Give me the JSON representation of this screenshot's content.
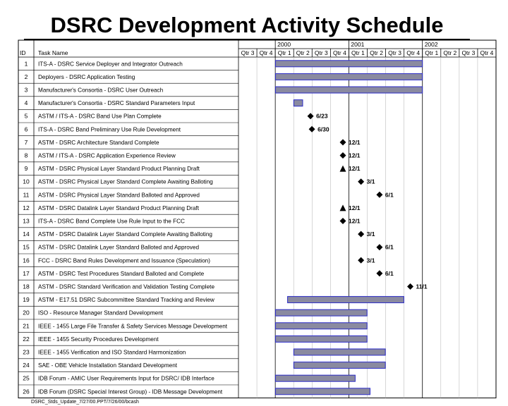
{
  "title": "DSRC Development Activity Schedule",
  "footer": "DSRC_Stds_Update_7/27/00.PPT/7/26/00/bcash",
  "colors": {
    "bar_fill": "#8a8aa0",
    "bar_stroke": "#2b2bc8",
    "grid": "#000000",
    "milestone": "#000000"
  },
  "chart_data": {
    "type": "gantt",
    "title": "DSRC Development Activity Schedule",
    "columns": {
      "id": "ID",
      "task": "Task Name"
    },
    "years": [
      {
        "label": "",
        "quarters": [
          "Qtr 3",
          "Qtr 4"
        ]
      },
      {
        "label": "2000",
        "quarters": [
          "Qtr 1",
          "Qtr 2",
          "Qtr 3",
          "Qtr 4"
        ]
      },
      {
        "label": "2001",
        "quarters": [
          "Qtr 1",
          "Qtr 2",
          "Qtr 3",
          "Qtr 4"
        ]
      },
      {
        "label": "2002",
        "quarters": [
          "Qtr 1",
          "Qtr 2",
          "Qtr 3",
          "Qtr 4"
        ]
      }
    ],
    "timeline_start": "1999-07-01",
    "timeline_end": "2002-12-31",
    "tasks": [
      {
        "id": "1",
        "name": "ITS-A - DSRC Service Deployer and Integrator Outreach",
        "kind": "bar",
        "start": "2000-01-01",
        "end": "2001-12-31"
      },
      {
        "id": "2",
        "name": "Deployers - DSRC Application Testing",
        "kind": "bar",
        "start": "2000-01-01",
        "end": "2001-12-31"
      },
      {
        "id": "3",
        "name": "Manufacturer's Consortia  -  DSRC User Outreach",
        "kind": "bar",
        "start": "2000-01-01",
        "end": "2001-12-31"
      },
      {
        "id": "4",
        "name": "Manufacturer's Consortia  -   DSRC Standard Parameters Input",
        "kind": "bar",
        "start": "2000-04-01",
        "end": "2000-05-15"
      },
      {
        "id": "5",
        "name": "ASTM / ITS-A - DSRC Band Use Plan Complete",
        "kind": "milestone",
        "date": "2000-06-23",
        "label": "6/23",
        "shape": "diamond"
      },
      {
        "id": "6",
        "name": "ITS-A - DSRC Band Preliminary Use Rule Development",
        "kind": "milestone",
        "date": "2000-06-30",
        "label": "6/30",
        "shape": "diamond"
      },
      {
        "id": "7",
        "name": "ASTM - DSRC Architecture Standard Complete",
        "kind": "milestone",
        "date": "2000-12-01",
        "label": "12/1",
        "shape": "diamond"
      },
      {
        "id": "8",
        "name": "ASTM / ITS-A - DSRC Application Experience Review",
        "kind": "milestone",
        "date": "2000-12-01",
        "label": "12/1",
        "shape": "diamond"
      },
      {
        "id": "9",
        "name": "ASTM - DSRC Physical Layer Standard Product Planning Draft",
        "kind": "milestone",
        "date": "2000-12-01",
        "label": "12/1",
        "shape": "triangle"
      },
      {
        "id": "10",
        "name": "ASTM - DSRC Physical Layer Standard Complete Awaiting Balloting",
        "kind": "milestone",
        "date": "2001-03-01",
        "label": "3/1",
        "shape": "diamond"
      },
      {
        "id": "11",
        "name": "ASTM - DSRC Physical Layer Standard Balloted and Approved",
        "kind": "milestone",
        "date": "2001-06-01",
        "label": "6/1",
        "shape": "diamond"
      },
      {
        "id": "12",
        "name": "ASTM - DSRC Datalink Layer Standard Product Planning Draft",
        "kind": "milestone",
        "date": "2000-12-01",
        "label": "12/1",
        "shape": "triangle"
      },
      {
        "id": "13",
        "name": "ITS-A - DSRC Band Complete Use Rule Input to the FCC",
        "kind": "milestone",
        "date": "2000-12-01",
        "label": "12/1",
        "shape": "diamond"
      },
      {
        "id": "14",
        "name": "ASTM - DSRC Datalink Layer Standard Complete Awaiting Balloting",
        "kind": "milestone",
        "date": "2001-03-01",
        "label": "3/1",
        "shape": "diamond"
      },
      {
        "id": "15",
        "name": "ASTM - DSRC Datalink Layer Standard Balloted and Approved",
        "kind": "milestone",
        "date": "2001-06-01",
        "label": "6/1",
        "shape": "diamond"
      },
      {
        "id": "16",
        "name": "FCC   - DSRC Band Rules Development and Issuance (Speculation)",
        "kind": "milestone",
        "date": "2001-03-01",
        "label": "3/1",
        "shape": "diamond"
      },
      {
        "id": "17",
        "name": "ASTM - DSRC Test Procedures Standard Balloted and Complete",
        "kind": "milestone",
        "date": "2001-06-01",
        "label": "6/1",
        "shape": "diamond"
      },
      {
        "id": "18",
        "name": "ASTM  - DSRC Standard Verification and Validation Testing Complete",
        "kind": "milestone",
        "date": "2001-11-01",
        "label": "11/1",
        "shape": "diamond"
      },
      {
        "id": "19",
        "name": "ASTM - E17.51 DSRC Subcommittee Standard Tracking and Review",
        "kind": "bar",
        "start": "2000-03-01",
        "end": "2001-09-30"
      },
      {
        "id": "20",
        "name": "ISO - Resource Manager Standard Development",
        "kind": "bar",
        "start": "2000-01-01",
        "end": "2001-03-31"
      },
      {
        "id": "21",
        "name": "IEEE - 1455  Large File Transfer & Safety Services Message Development",
        "kind": "bar",
        "start": "2000-01-01",
        "end": "2001-03-31"
      },
      {
        "id": "22",
        "name": "IEEE - 1455 Security Procedures Development",
        "kind": "bar",
        "start": "2000-01-01",
        "end": "2001-03-31"
      },
      {
        "id": "23",
        "name": "IEEE -  1455 Verification and ISO Standard Harmonization",
        "kind": "bar",
        "start": "2000-04-01",
        "end": "2001-06-30"
      },
      {
        "id": "24",
        "name": "SAE - OBE Vehicle Installation Standard Development",
        "kind": "bar",
        "start": "2000-04-01",
        "end": "2001-06-30"
      },
      {
        "id": "25",
        "name": "IDB Forum - AMIC User Requirements Input for DSRC/ IDB Interface",
        "kind": "bar",
        "start": "2000-01-01",
        "end": "2001-01-31"
      },
      {
        "id": "26",
        "name": "IDB Forum (DSRC Special Interest Group) - IDB Message Development",
        "kind": "bar",
        "start": "2000-01-01",
        "end": "2001-04-15"
      }
    ]
  }
}
